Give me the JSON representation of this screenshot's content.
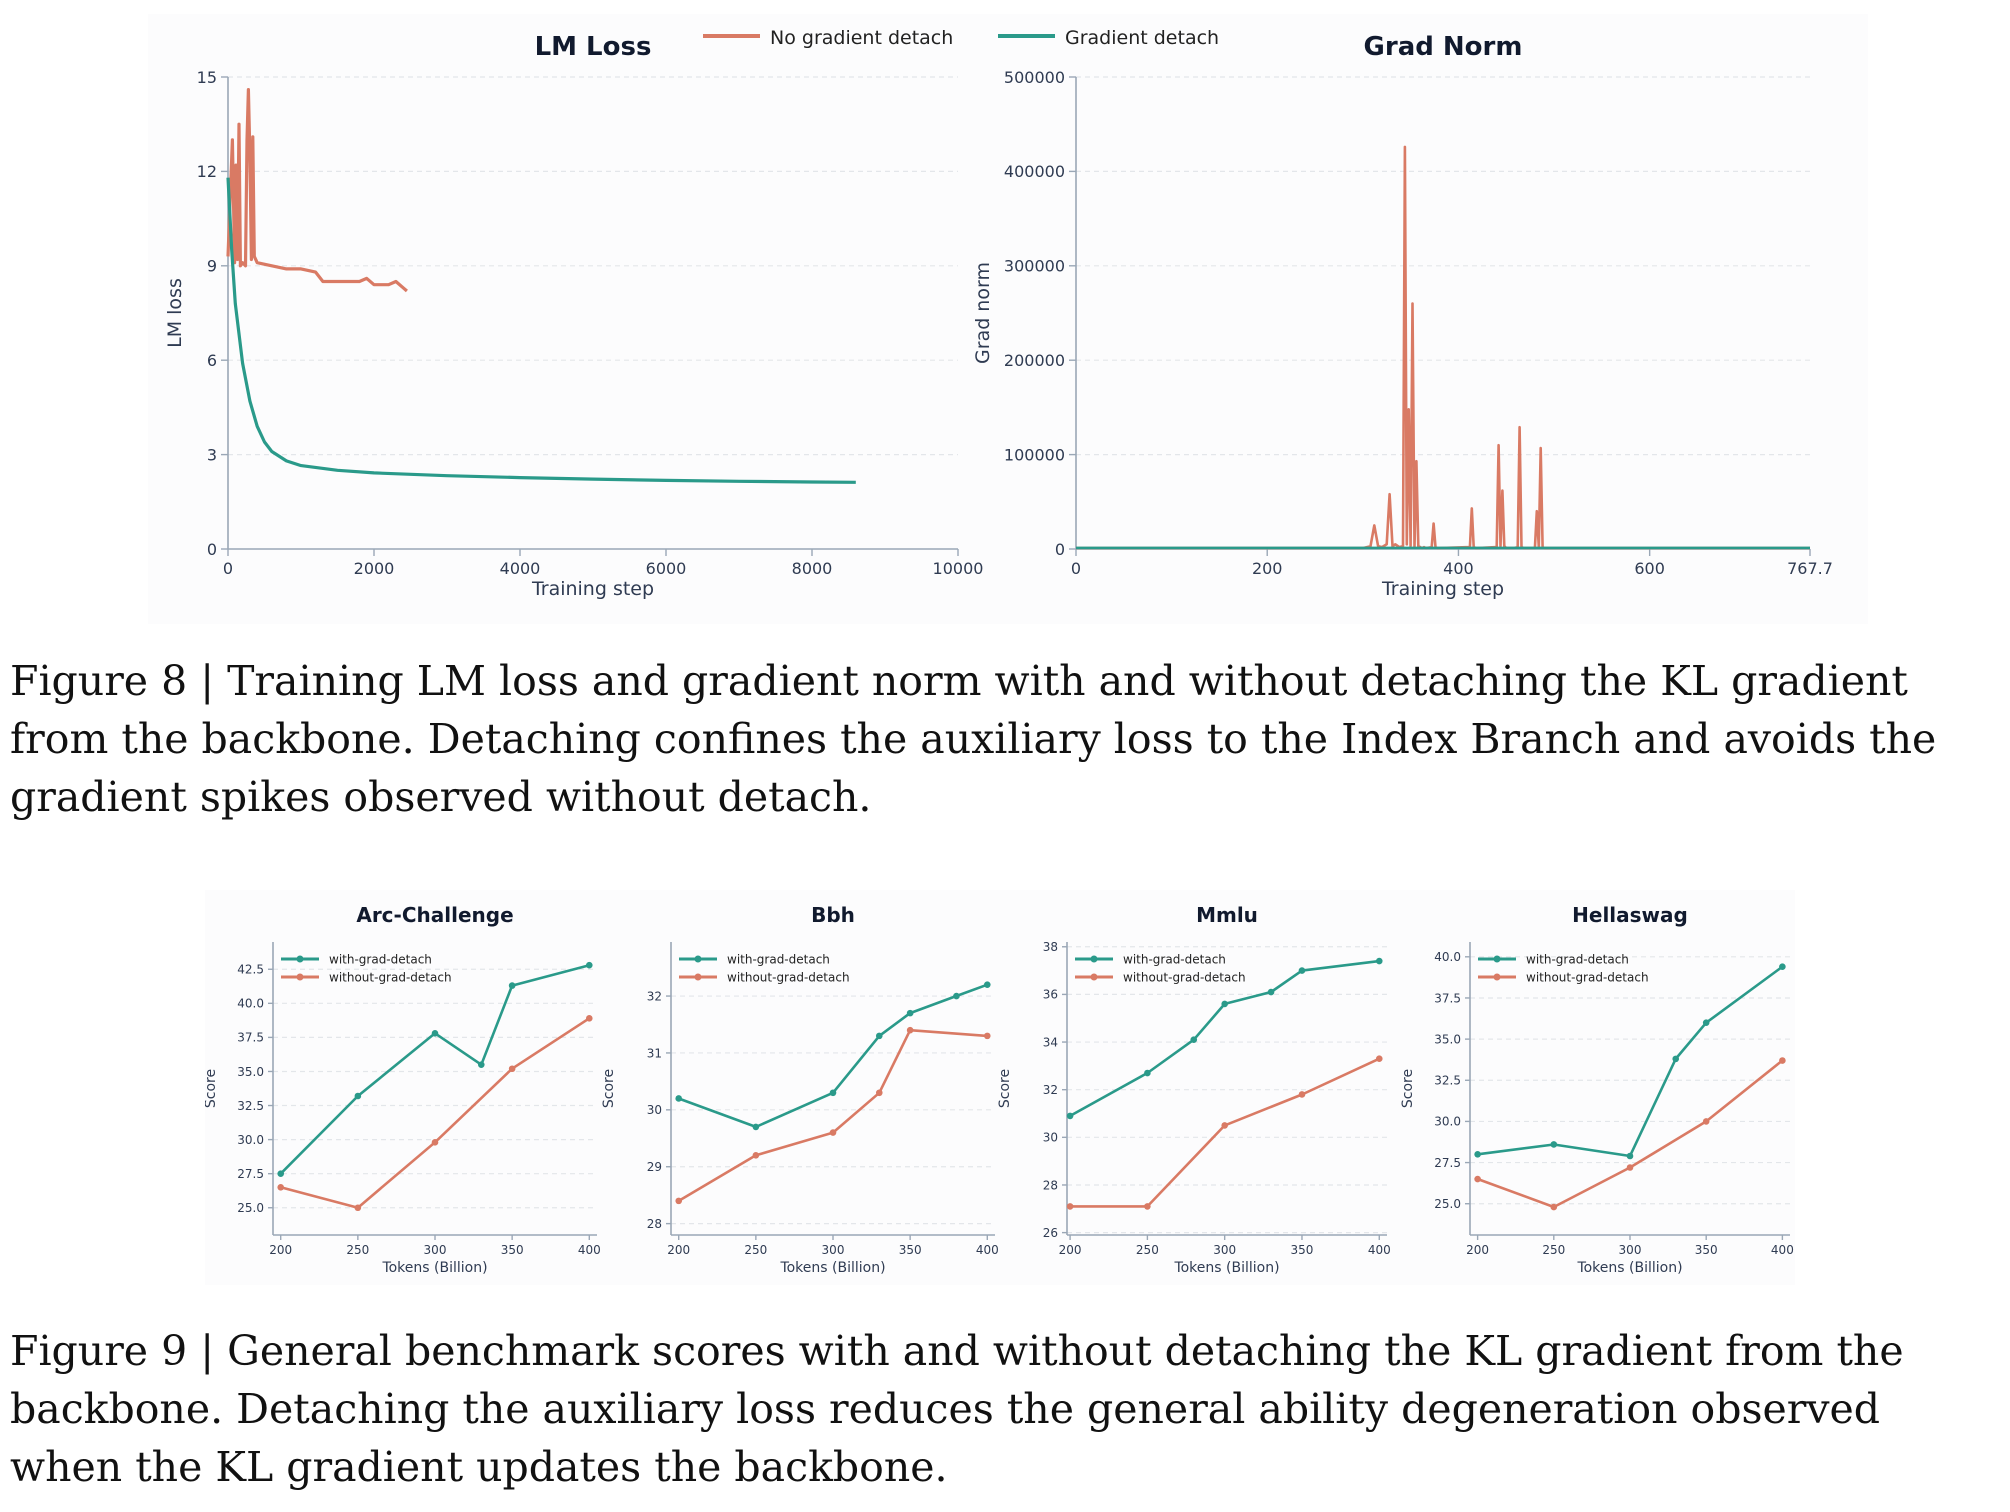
{
  "colors": {
    "no_detach": "#d97a64",
    "detach": "#2a9a8a",
    "axis": "#9aa7b6",
    "grid": "#e3e6ea",
    "text": "#2f3b52",
    "title": "#111a2e"
  },
  "figure8": {
    "legend": [
      "No gradient detach",
      "Gradient detach"
    ],
    "caption": {
      "label": "Figure 8 | ",
      "text": "Training LM loss and gradient norm with and without detaching the KL gradient from the backbone. Detaching confines the auxiliary loss to the Index Branch and avoids the gradient spikes observed without detach."
    }
  },
  "figure9": {
    "caption": {
      "label": "Figure 9 | ",
      "text": "General benchmark scores with and without detaching the KL gradient from the backbone. Detaching the auxiliary loss reduces the general ability degeneration observed when the KL gradient updates the backbone."
    }
  },
  "chart_data": [
    {
      "id": "lm_loss",
      "type": "line",
      "title": "LM Loss",
      "xlabel": "Training step",
      "ylabel": "LM loss",
      "xlim": [
        0,
        10000
      ],
      "ylim": [
        0,
        15
      ],
      "xticks": [
        "0",
        "2000",
        "4000",
        "6000",
        "8000",
        "10000"
      ],
      "yticks": [
        "0",
        "3",
        "6",
        "9",
        "12",
        "15"
      ],
      "grid": true,
      "legend": "top-center",
      "series": [
        {
          "name": "No gradient detach",
          "x": [
            0,
            60,
            90,
            110,
            130,
            150,
            170,
            200,
            240,
            260,
            280,
            300,
            320,
            340,
            360,
            400,
            600,
            800,
            1000,
            1200,
            1300,
            1400,
            1600,
            1800,
            1900,
            2000,
            2200,
            2300,
            2400,
            2450
          ],
          "y": [
            9.3,
            13.0,
            9.1,
            12.2,
            9.2,
            13.5,
            9.0,
            9.1,
            9.0,
            13.0,
            14.6,
            12.5,
            9.2,
            13.1,
            9.3,
            9.1,
            9.0,
            8.9,
            8.9,
            8.8,
            8.5,
            8.5,
            8.5,
            8.5,
            8.6,
            8.4,
            8.4,
            8.5,
            8.3,
            8.2
          ]
        },
        {
          "name": "Gradient detach",
          "x": [
            0,
            50,
            100,
            200,
            300,
            400,
            500,
            600,
            800,
            1000,
            1500,
            2000,
            3000,
            4000,
            5000,
            6000,
            7000,
            8000,
            8600
          ],
          "y": [
            11.8,
            9.5,
            7.8,
            5.9,
            4.7,
            3.9,
            3.4,
            3.1,
            2.8,
            2.65,
            2.5,
            2.42,
            2.33,
            2.27,
            2.22,
            2.18,
            2.15,
            2.13,
            2.12
          ]
        }
      ]
    },
    {
      "id": "grad_norm",
      "type": "line",
      "title": "Grad Norm",
      "xlabel": "Training step",
      "ylabel": "Grad norm",
      "xlim": [
        0,
        767.7
      ],
      "ylim": [
        0,
        500000
      ],
      "xticks": [
        "0",
        "200",
        "400",
        "600",
        "767.7"
      ],
      "yticks": [
        "0",
        "100000",
        "200000",
        "300000",
        "400000",
        "500000"
      ],
      "grid": true,
      "series": [
        {
          "name": "No gradient detach",
          "x": [
            0,
            300,
            308,
            312,
            316,
            320,
            325,
            328,
            331,
            334,
            338,
            342,
            344,
            346,
            348,
            350,
            352,
            354,
            356,
            358,
            360,
            362,
            364,
            366,
            372,
            374,
            376,
            378,
            380,
            412,
            414,
            416,
            418,
            420,
            440,
            442,
            444,
            446,
            448,
            450,
            452,
            454,
            458,
            462,
            464,
            466,
            468,
            470,
            474,
            480,
            482,
            484,
            486,
            488,
            490,
            492,
            494,
            500,
            767.7
          ],
          "y": [
            1000,
            1000,
            3000,
            25000,
            3000,
            2000,
            5000,
            58000,
            3000,
            5000,
            2000,
            3000,
            426000,
            5000,
            148000,
            3000,
            260000,
            2000,
            93000,
            3000,
            2000,
            1000,
            2000,
            1000,
            2000,
            27000,
            2000,
            1000,
            1000,
            2000,
            43000,
            2000,
            1000,
            1000,
            2000,
            110000,
            3000,
            62000,
            3000,
            1000,
            1000,
            1000,
            1000,
            2000,
            129000,
            2000,
            1000,
            1000,
            1000,
            1000,
            40000,
            2000,
            107000,
            2000,
            1000,
            1000,
            1000,
            1000,
            1000
          ]
        },
        {
          "name": "Gradient detach",
          "x": [
            0,
            200,
            400,
            600,
            767.7
          ],
          "y": [
            1200,
            1200,
            1200,
            1200,
            1200
          ]
        }
      ]
    },
    {
      "id": "arc",
      "type": "line",
      "title": "Arc-Challenge",
      "xlabel": "Tokens (Billion)",
      "ylabel": "Score",
      "xlim": [
        195,
        405
      ],
      "ylim": [
        23,
        44.5
      ],
      "xticks": [
        200,
        250,
        300,
        350,
        400
      ],
      "yticks": [
        25.0,
        27.5,
        30.0,
        32.5,
        35.0,
        37.5,
        40.0,
        42.5
      ],
      "grid": true,
      "legend": "top-left",
      "series": [
        {
          "name": "with-grad-detach",
          "x": [
            200,
            250,
            300,
            330,
            350,
            400
          ],
          "y": [
            27.5,
            33.2,
            37.8,
            35.5,
            41.3,
            42.8
          ]
        },
        {
          "name": "without-grad-detach",
          "x": [
            200,
            250,
            300,
            350,
            400
          ],
          "y": [
            26.5,
            25.0,
            29.8,
            35.2,
            38.9
          ]
        }
      ]
    },
    {
      "id": "bbh",
      "type": "line",
      "title": "Bbh",
      "xlabel": "Tokens (Billion)",
      "ylabel": "Score",
      "xlim": [
        195,
        405
      ],
      "ylim": [
        27.8,
        32.95
      ],
      "xticks": [
        200,
        250,
        300,
        350,
        400
      ],
      "yticks": [
        28,
        29,
        30,
        31,
        32
      ],
      "grid": true,
      "legend": "top-left",
      "series": [
        {
          "name": "with-grad-detach",
          "x": [
            200,
            250,
            300,
            330,
            350,
            380,
            400
          ],
          "y": [
            30.2,
            29.7,
            30.3,
            31.3,
            31.7,
            32.0,
            32.2
          ]
        },
        {
          "name": "without-grad-detach",
          "x": [
            200,
            250,
            300,
            330,
            350,
            400
          ],
          "y": [
            28.4,
            29.2,
            29.6,
            30.3,
            31.4,
            31.3
          ]
        }
      ]
    },
    {
      "id": "mmlu",
      "type": "line",
      "title": "Mmlu",
      "xlabel": "Tokens (Billion)",
      "ylabel": "Score",
      "xlim": [
        198,
        405
      ],
      "ylim": [
        25.9,
        38.2
      ],
      "xticks": [
        200,
        250,
        300,
        350,
        400
      ],
      "yticks": [
        26,
        28,
        30,
        32,
        34,
        36,
        38
      ],
      "grid": true,
      "legend": "top-left",
      "series": [
        {
          "name": "with-grad-detach",
          "x": [
            200,
            250,
            280,
            300,
            330,
            350,
            400
          ],
          "y": [
            30.9,
            32.7,
            34.1,
            35.6,
            36.1,
            37.0,
            37.4
          ]
        },
        {
          "name": "without-grad-detach",
          "x": [
            200,
            250,
            300,
            350,
            400
          ],
          "y": [
            27.1,
            27.1,
            30.5,
            31.8,
            33.3
          ]
        }
      ]
    },
    {
      "id": "hellaswag",
      "type": "line",
      "title": "Hellaswag",
      "xlabel": "Tokens (Billion)",
      "ylabel": "Score",
      "xlim": [
        195,
        405
      ],
      "ylim": [
        23.1,
        40.9
      ],
      "xticks": [
        200,
        250,
        300,
        350,
        400
      ],
      "yticks": [
        25.0,
        27.5,
        30.0,
        32.5,
        35.0,
        37.5,
        40.0
      ],
      "grid": true,
      "legend": "top-left",
      "series": [
        {
          "name": "with-grad-detach",
          "x": [
            200,
            250,
            300,
            330,
            350,
            400
          ],
          "y": [
            28.0,
            28.6,
            27.9,
            33.8,
            36.0,
            39.4
          ]
        },
        {
          "name": "without-grad-detach",
          "x": [
            200,
            250,
            300,
            350,
            400
          ],
          "y": [
            26.5,
            24.8,
            27.2,
            30.0,
            33.7
          ]
        }
      ]
    }
  ]
}
